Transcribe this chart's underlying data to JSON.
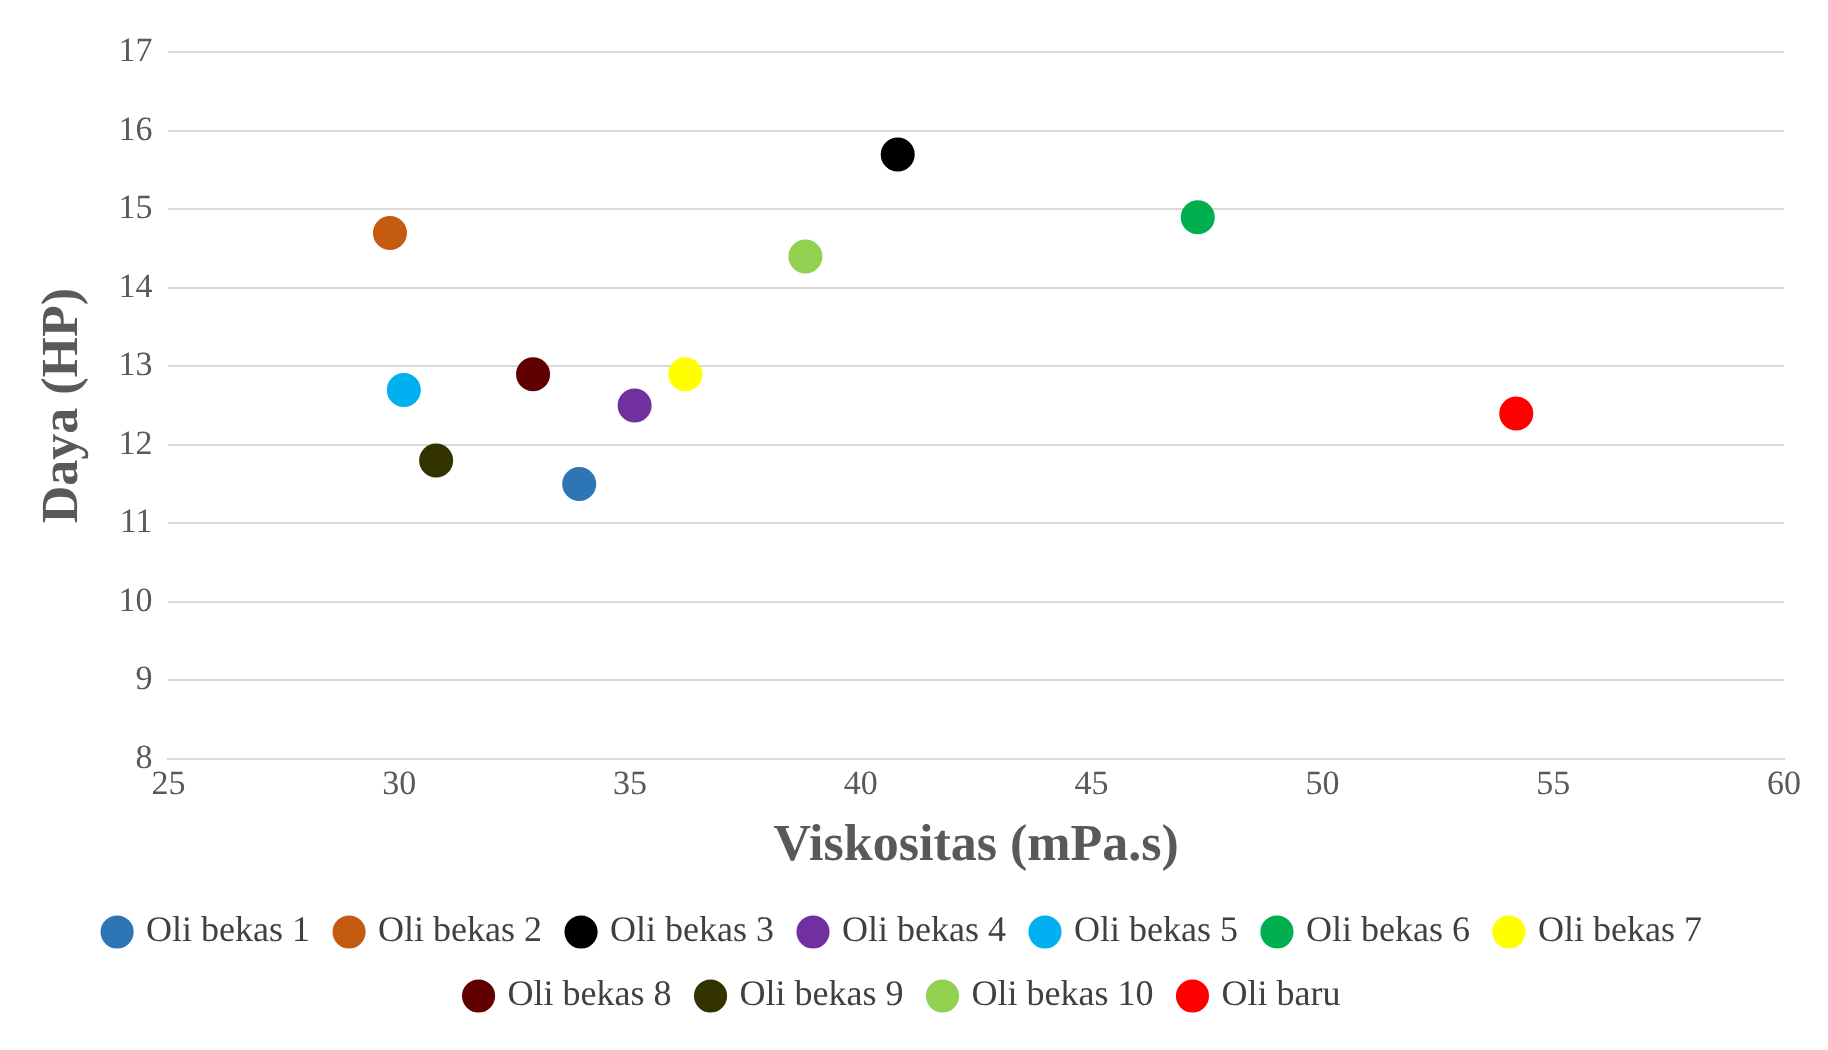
{
  "chart_data": {
    "type": "scatter",
    "xlabel": "Viskositas (mPa.s)",
    "ylabel": "Daya (HP)",
    "xlim": [
      25,
      60
    ],
    "xticks": [
      25,
      30,
      35,
      40,
      45,
      50,
      55,
      60
    ],
    "ylim": [
      8,
      17
    ],
    "yticks": [
      8,
      9,
      10,
      11,
      12,
      13,
      14,
      15,
      16,
      17
    ],
    "grid": "y",
    "legend": "bottom",
    "marker": "circle",
    "series": [
      {
        "name": "Oli bekas 1",
        "color": "#2e75b6",
        "x": [
          33.9
        ],
        "values": [
          11.5
        ]
      },
      {
        "name": "Oli bekas 2",
        "color": "#c55a11",
        "x": [
          29.8
        ],
        "values": [
          14.7
        ]
      },
      {
        "name": "Oli bekas 3",
        "color": "#000000",
        "x": [
          40.8
        ],
        "values": [
          15.7
        ]
      },
      {
        "name": "Oli bekas 4",
        "color": "#7030a0",
        "x": [
          35.1
        ],
        "values": [
          12.5
        ]
      },
      {
        "name": "Oli bekas 5",
        "color": "#00b0f0",
        "x": [
          30.1
        ],
        "values": [
          12.7
        ]
      },
      {
        "name": "Oli bekas 6",
        "color": "#00b050",
        "x": [
          47.3
        ],
        "values": [
          14.9
        ]
      },
      {
        "name": "Oli bekas 7",
        "color": "#ffff00",
        "x": [
          36.2
        ],
        "values": [
          12.9
        ]
      },
      {
        "name": "Oli bekas 8",
        "color": "#600000",
        "x": [
          32.9
        ],
        "values": [
          12.9
        ]
      },
      {
        "name": "Oli bekas 9",
        "color": "#333300",
        "x": [
          30.8
        ],
        "values": [
          11.8
        ]
      },
      {
        "name": "Oli bekas 10",
        "color": "#92d050",
        "x": [
          38.8
        ],
        "values": [
          14.4
        ]
      },
      {
        "name": "Oli baru",
        "color": "#ff0000",
        "x": [
          54.2
        ],
        "values": [
          12.4
        ]
      }
    ]
  }
}
